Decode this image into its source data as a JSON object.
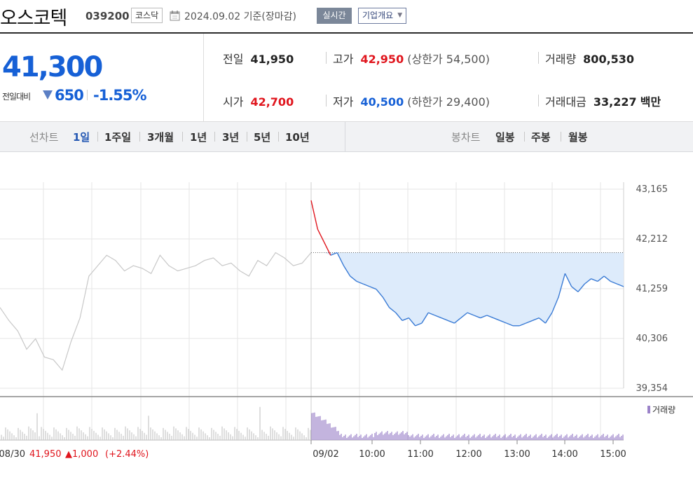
{
  "header": {
    "name": "오스코텍",
    "code": "039200",
    "market": "코스닥",
    "date": "2024.09.02",
    "date_note": "기준(장마감)",
    "realtime_label": "실시간",
    "company_info_label": "기업개요"
  },
  "price": {
    "current": "41,300",
    "change_label": "전일대비",
    "change_value": "650",
    "change_pct": "-1.55%"
  },
  "stats": {
    "prev_label": "전일",
    "prev": "41,950",
    "high_label": "고가",
    "high": "42,950",
    "upper_label": "(상한가",
    "upper": "54,500)",
    "volume_label": "거래량",
    "volume": "800,530",
    "open_label": "시가",
    "open": "42,700",
    "low_label": "저가",
    "low": "40,500",
    "lower_label": "(하한가",
    "lower": "29,400)",
    "amount_label": "거래대금",
    "amount": "33,227",
    "amount_unit": "백만"
  },
  "tabs": {
    "line_chart": "선차트",
    "periods": [
      "1일",
      "1주일",
      "3개월",
      "1년",
      "3년",
      "5년",
      "10년"
    ],
    "active": "1일",
    "candle_chart": "봉차트",
    "candles": [
      "일봉",
      "주봉",
      "월봉"
    ]
  },
  "chart_data": {
    "type": "line",
    "y_ticks": [
      "43,165",
      "42,212",
      "41,259",
      "40,306",
      "39,354"
    ],
    "ylim": [
      39354,
      43165
    ],
    "x_ticks": [
      "09/02",
      "10:00",
      "11:00",
      "12:00",
      "13:00",
      "14:00",
      "15:00"
    ],
    "reference_price": 41950,
    "volume_label": "거래량",
    "prev_day": {
      "date": "08/30",
      "close": "41,950",
      "change": "▲1,000",
      "change_pct": "(+2.44%)"
    },
    "prev_day_series": [
      40900,
      40650,
      40450,
      40100,
      40300,
      39950,
      39900,
      39700,
      40250,
      40700,
      41500,
      41700,
      41900,
      41800,
      41600,
      41700,
      41650,
      41550,
      41900,
      41700,
      41600,
      41650,
      41700,
      41800,
      41850,
      41700,
      41750,
      41600,
      41500,
      41800,
      41700,
      41950,
      41850,
      41700,
      41750,
      41950
    ],
    "today_series": [
      42950,
      42400,
      42150,
      41900,
      41950,
      41700,
      41500,
      41400,
      41350,
      41300,
      41250,
      41100,
      40900,
      40800,
      40650,
      40700,
      40550,
      40600,
      40800,
      40750,
      40700,
      40650,
      40600,
      40700,
      40800,
      40750,
      40700,
      40750,
      40700,
      40650,
      40600,
      40550,
      40550,
      40600,
      40650,
      40700,
      40600,
      40800,
      41100,
      41550,
      41300,
      41200,
      41350,
      41450,
      41400,
      41500,
      41400,
      41350,
      41300
    ]
  },
  "colors": {
    "up": "#e0151d",
    "down": "#1660d6",
    "today_line": "#3a7bd5",
    "prev_line": "#c8c8c8",
    "area_fill": "#ddebfb",
    "volume_today": "#9b82c9",
    "volume_prev": "#cccccc"
  }
}
